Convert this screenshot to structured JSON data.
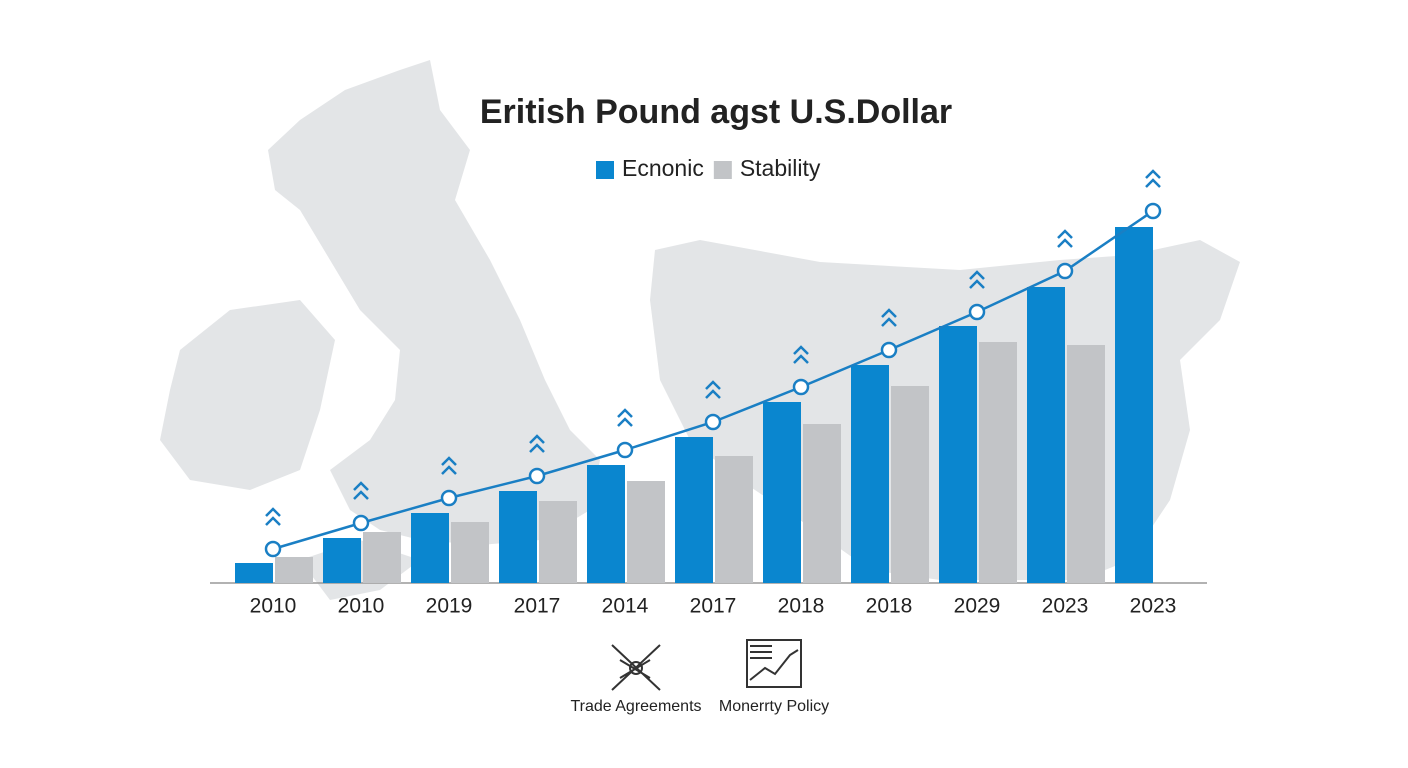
{
  "chart_data": {
    "type": "bar",
    "title": "Eritish Pound agst U.S.Dollar",
    "categories": [
      "2010",
      "2010",
      "2019",
      "2017",
      "2014",
      "2017",
      "2018",
      "2018",
      "2029",
      "2023",
      "2023"
    ],
    "series": [
      {
        "name": "Ecnonic",
        "color": "#0a86cf",
        "values": [
          20,
          45,
          70,
          92,
          118,
          146,
          181,
          218,
          257,
          296,
          356
        ]
      },
      {
        "name": "Stability",
        "color": "#c2c4c7",
        "values": [
          26,
          51,
          61,
          82,
          102,
          127,
          159,
          197,
          241,
          238,
          null
        ]
      },
      {
        "type": "line",
        "color": "#1a7fc4",
        "values": [
          34,
          60,
          85,
          107,
          133,
          161,
          196,
          233,
          271,
          312,
          372
        ]
      }
    ],
    "annotations": [
      "Trade Agreements",
      "Monerrty Policy"
    ]
  }
}
